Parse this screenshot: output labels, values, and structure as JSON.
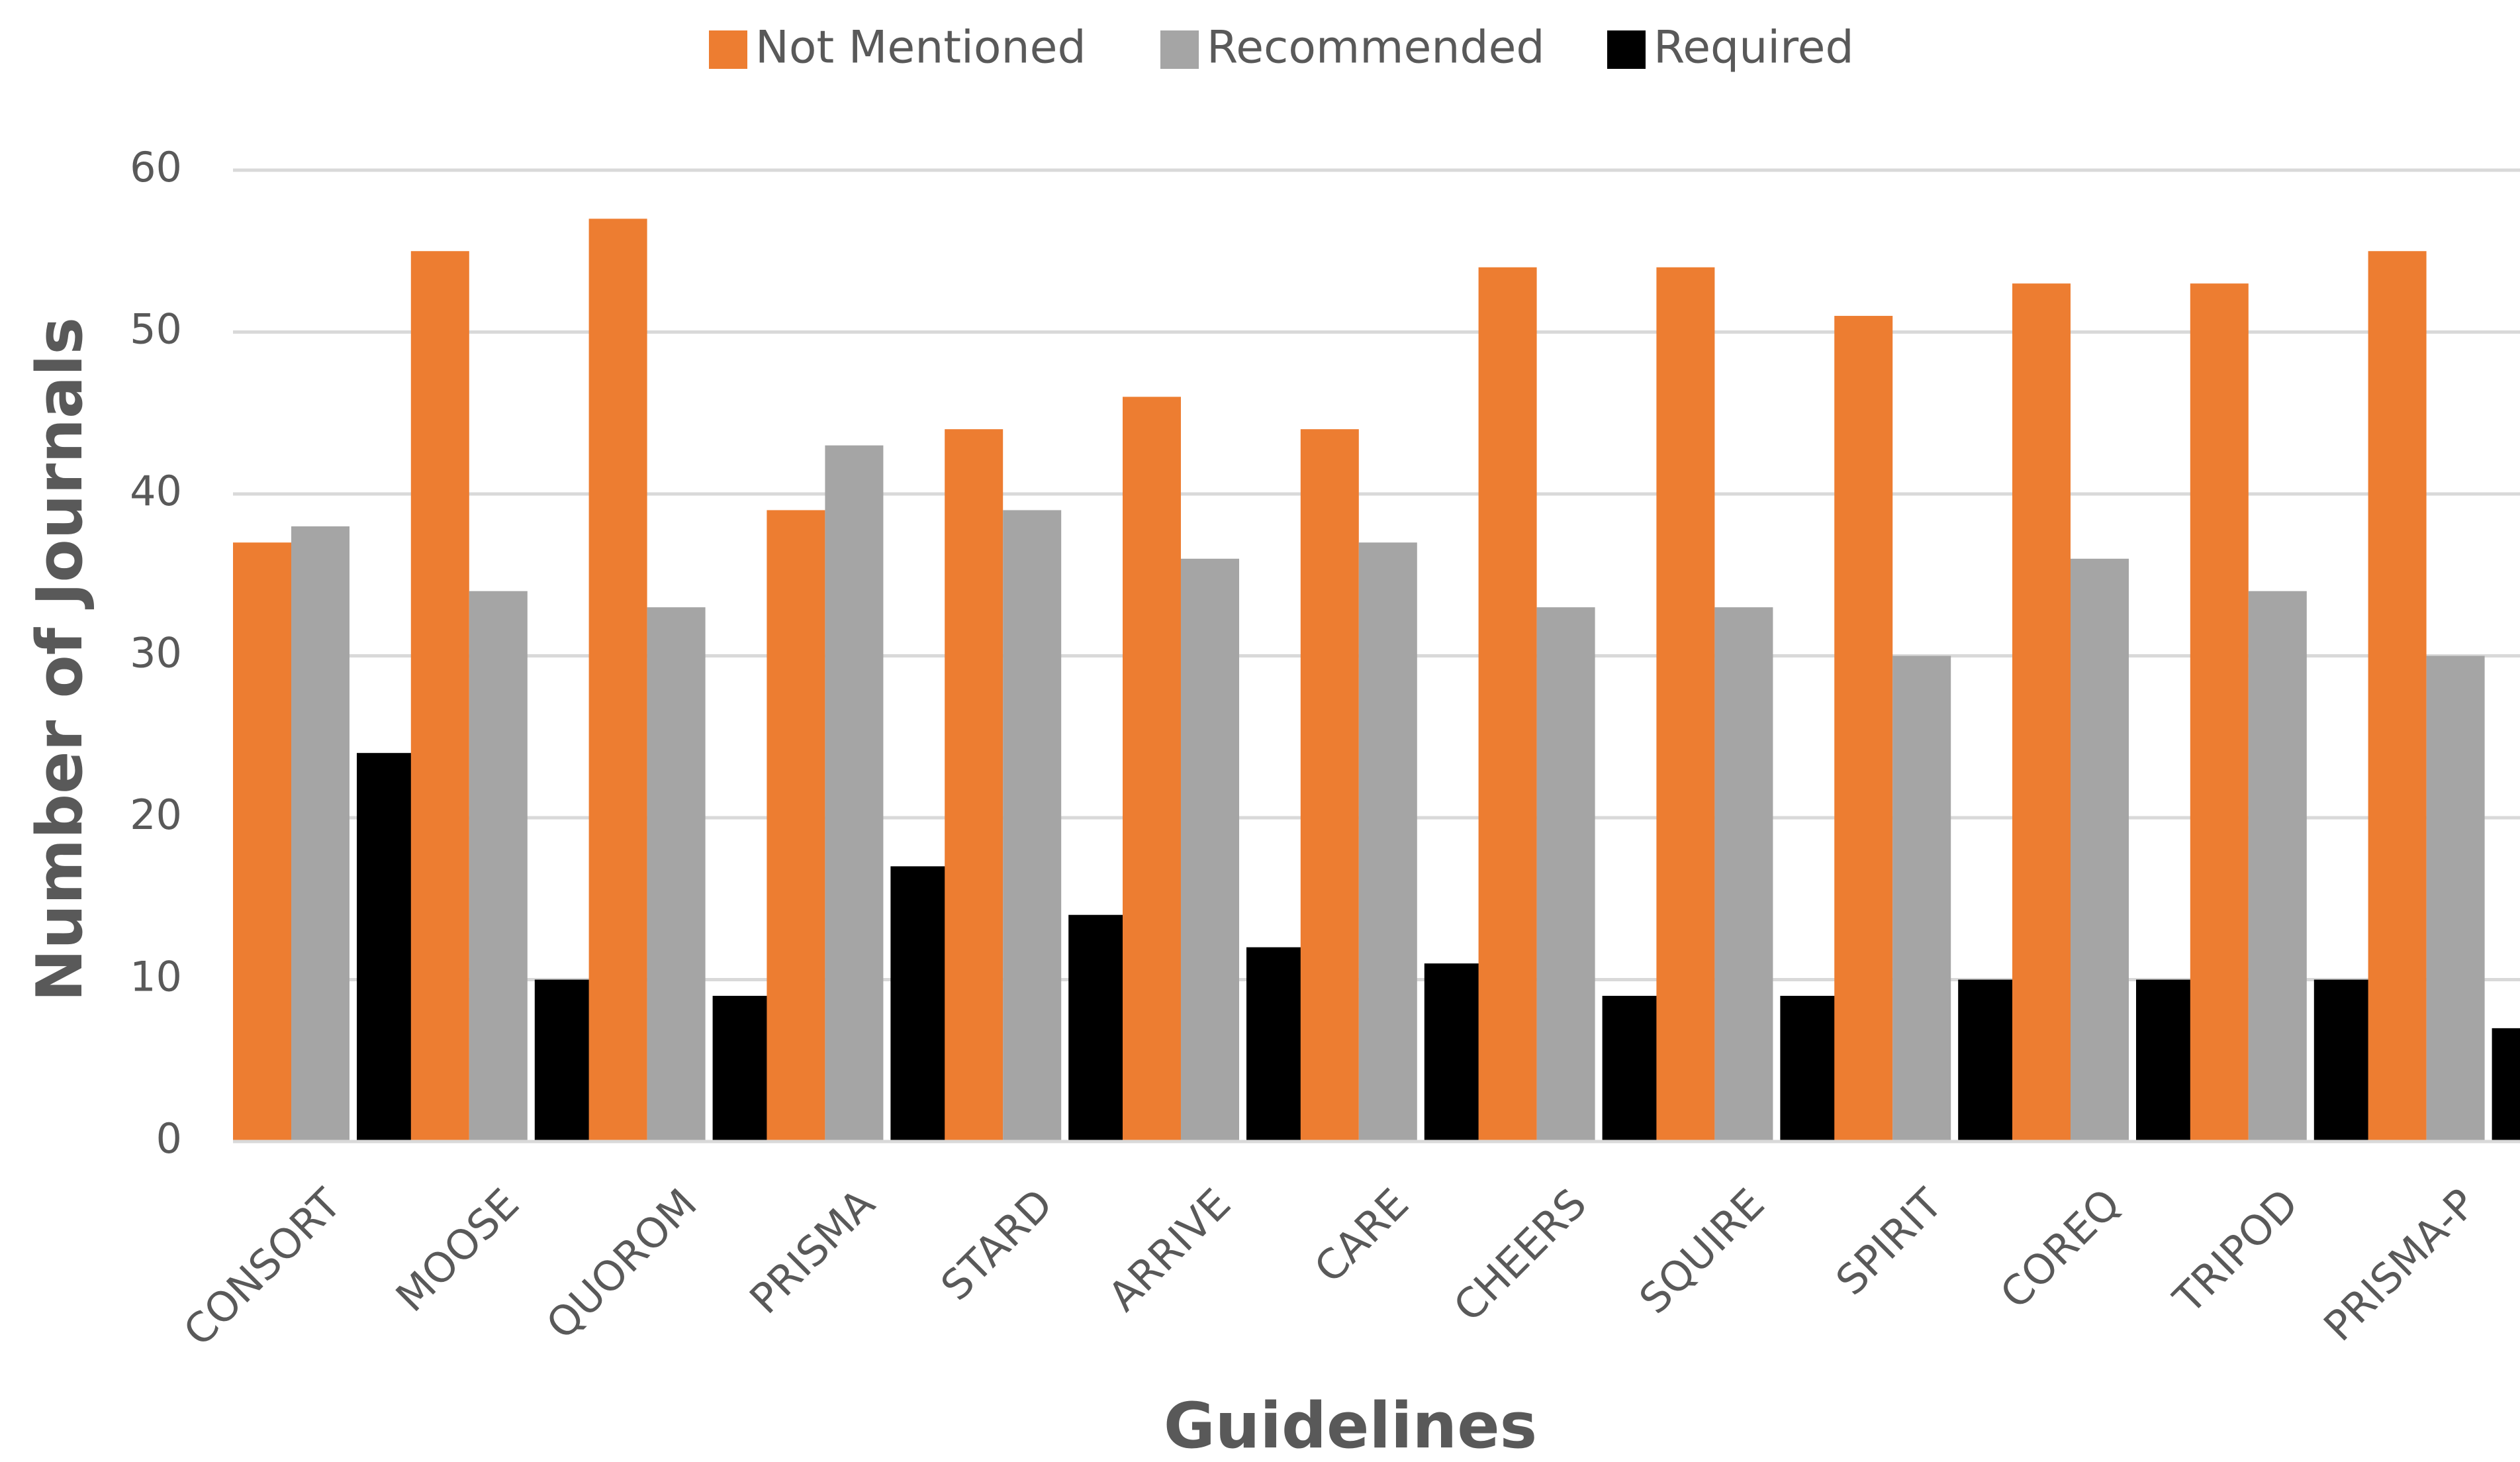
{
  "chart_data": {
    "type": "bar",
    "x_label": "Guidelines",
    "y_label": "Number of Journals",
    "categories": [
      "CONSORT",
      "MOOSE",
      "QUOROM",
      "PRISMA",
      "STARD",
      "ARRIVE",
      "CARE",
      "CHEERS",
      "SQUIRE",
      "SPIRIT",
      "COREQ",
      "TRIPOD",
      "PRISMA-P"
    ],
    "series": [
      {
        "name": "Not Mentioned",
        "color": "#ed7d31",
        "values": [
          37,
          55,
          57,
          39,
          44,
          46,
          44,
          54,
          54,
          51,
          53,
          53,
          55
        ]
      },
      {
        "name": "Recommended",
        "color": "#a5a5a5",
        "values": [
          38,
          34,
          33,
          43,
          39,
          36,
          37,
          33,
          33,
          30,
          36,
          34,
          30
        ]
      },
      {
        "name": "Required",
        "color": "#000000",
        "values": [
          24,
          10,
          9,
          17,
          14,
          12,
          11,
          9,
          9,
          10,
          10,
          10,
          7
        ]
      }
    ],
    "ylim": [
      0,
      60
    ],
    "yticks": [
      0,
      10,
      20,
      30,
      40,
      50,
      60
    ],
    "grid": true,
    "legend": "top"
  }
}
